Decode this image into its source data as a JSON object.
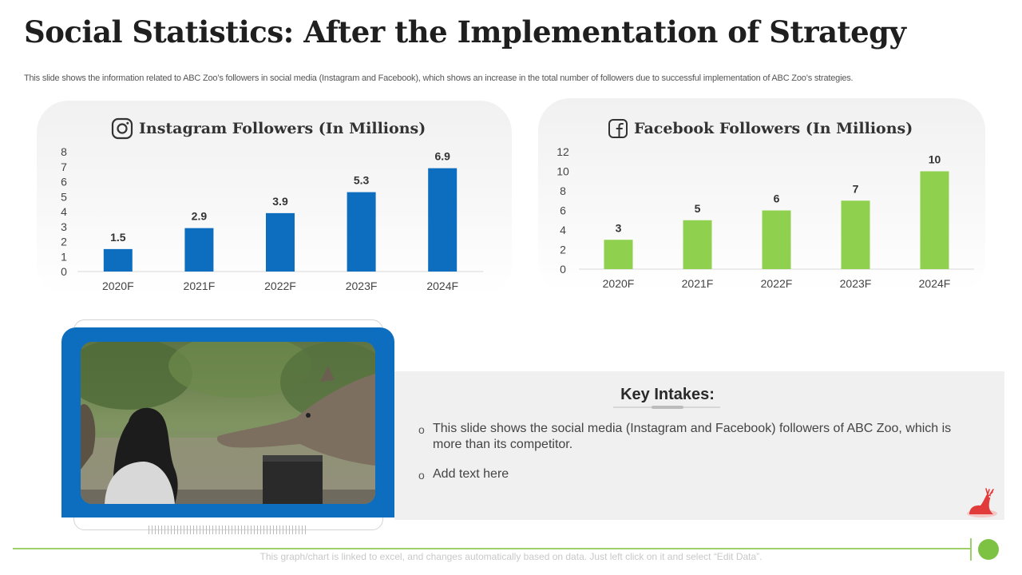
{
  "slide": {
    "title": "Social Statistics: After the Implementation of Strategy",
    "subtitle": "This slide shows the information related to ABC Zoo’s followers in social media (Instagram and Facebook), which shows an increase in the total number of followers due to successful implementation of ABC Zoo’s strategies.",
    "footer_note": "This graph/chart is linked to excel, and changes automatically based on data. Just left click on it and select “Edit Data”."
  },
  "icons": {
    "instagram": "instagram-icon",
    "facebook": "facebook-icon",
    "deer": "deer-icon"
  },
  "colors": {
    "instagram_bar": "#0d6ec0",
    "facebook_bar": "#8fd14f",
    "accent_green": "#7dc243"
  },
  "chart_data": [
    {
      "type": "bar",
      "title": "Instagram Followers (In Millions)",
      "categories": [
        "2020F",
        "2021F",
        "2022F",
        "2023F",
        "2024F"
      ],
      "values": [
        1.5,
        2.9,
        3.9,
        5.3,
        6.9
      ],
      "value_labels": [
        "1.5",
        "2.9",
        "3.9",
        "5.3",
        "6.9"
      ],
      "ylim": [
        0,
        8
      ],
      "yticks": [
        0,
        1,
        2,
        3,
        4,
        5,
        6,
        7,
        8
      ],
      "xlabel": "",
      "ylabel": "",
      "grid": false,
      "color": "#0d6ec0"
    },
    {
      "type": "bar",
      "title": "Facebook Followers (In Millions)",
      "categories": [
        "2020F",
        "2021F",
        "2022F",
        "2023F",
        "2024F"
      ],
      "values": [
        3,
        5,
        6,
        7,
        10
      ],
      "value_labels": [
        "3",
        "5",
        "6",
        "7",
        "10"
      ],
      "ylim": [
        0,
        12
      ],
      "yticks": [
        0,
        2,
        4,
        6,
        8,
        10,
        12
      ],
      "xlabel": "",
      "ylabel": "",
      "grid": false,
      "color": "#8fd14f"
    }
  ],
  "intakes": {
    "title": "Key Intakes:",
    "bullets": [
      "This slide shows the social media (Instagram and Facebook) followers of ABC Zoo, which is more than its competitor.",
      "Add text here"
    ]
  }
}
